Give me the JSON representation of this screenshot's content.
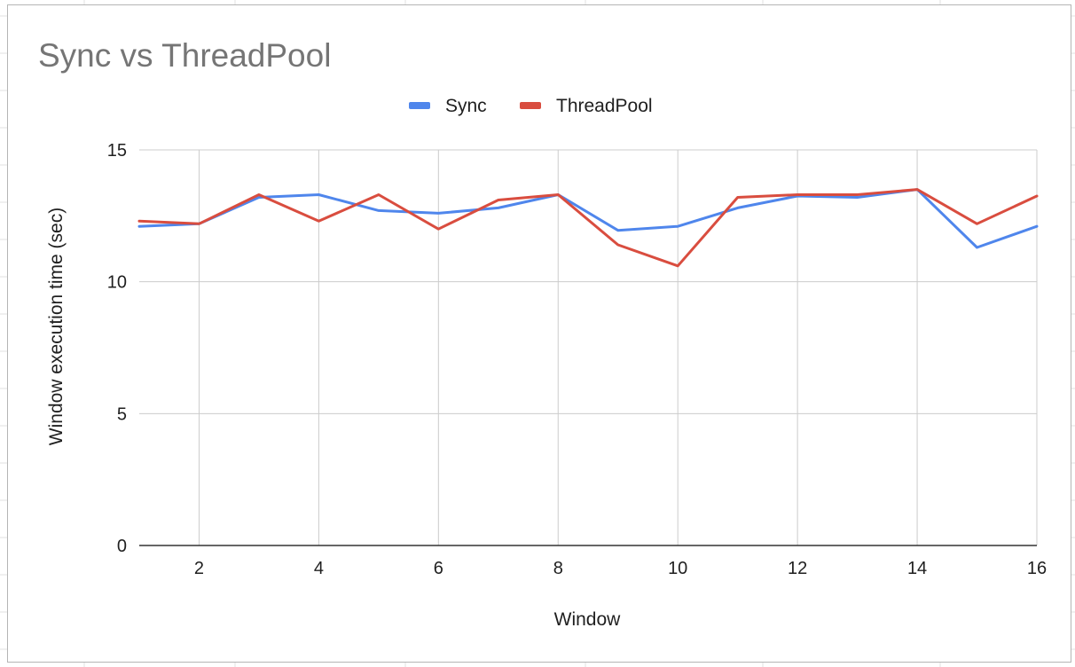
{
  "chart_data": {
    "type": "line",
    "title": "Sync vs ThreadPool",
    "xlabel": "Window",
    "ylabel": "Window execution time (sec)",
    "x": [
      1,
      2,
      3,
      4,
      5,
      6,
      7,
      8,
      9,
      10,
      11,
      12,
      13,
      14,
      15,
      16
    ],
    "xlim": [
      1,
      16
    ],
    "ylim": [
      0,
      15
    ],
    "xticks": [
      "2",
      "4",
      "6",
      "8",
      "10",
      "12",
      "14",
      "16"
    ],
    "yticks": [
      "0",
      "5",
      "10",
      "15"
    ],
    "grid": true,
    "legend_position": "top",
    "series": [
      {
        "name": "Sync",
        "color": "#4f86ec",
        "values": [
          12.1,
          12.2,
          13.2,
          13.3,
          12.7,
          12.6,
          12.8,
          13.3,
          11.95,
          12.1,
          12.8,
          13.25,
          13.2,
          13.5,
          11.3,
          12.1
        ]
      },
      {
        "name": "ThreadPool",
        "color": "#d94d3f",
        "values": [
          12.3,
          12.2,
          13.3,
          12.3,
          13.3,
          12.0,
          13.1,
          13.3,
          11.4,
          10.6,
          13.2,
          13.3,
          13.3,
          13.5,
          12.2,
          13.25
        ]
      }
    ]
  }
}
